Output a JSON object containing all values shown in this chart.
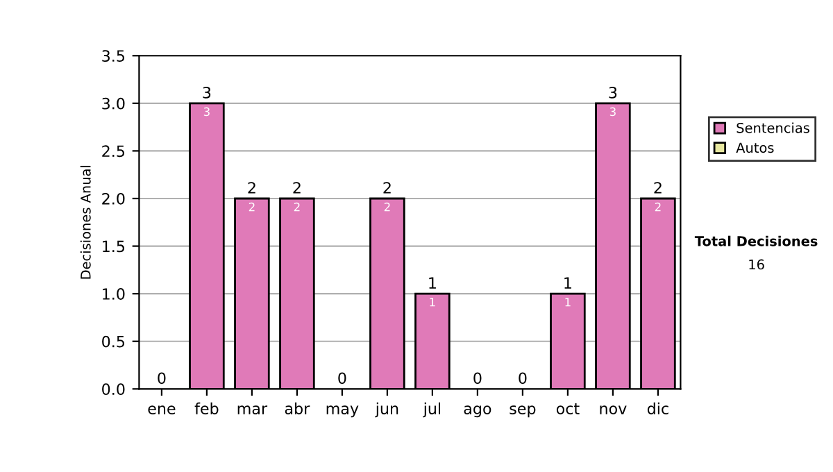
{
  "chart_data": {
    "type": "bar",
    "ylabel": "Decisiones Anual",
    "categories": [
      "ene",
      "feb",
      "mar",
      "abr",
      "may",
      "jun",
      "jul",
      "ago",
      "sep",
      "oct",
      "nov",
      "dic"
    ],
    "stacked": true,
    "series": [
      {
        "name": "Sentencias",
        "color": "#e07ab8",
        "values": [
          0,
          3,
          2,
          2,
          0,
          2,
          1,
          0,
          0,
          1,
          3,
          2
        ],
        "value_labels": [
          null,
          "3",
          "2",
          "2",
          null,
          "2",
          "1",
          null,
          null,
          "1",
          "3",
          "2"
        ]
      },
      {
        "name": "Autos",
        "color": "#e8e8a0",
        "values": [
          0,
          0,
          0,
          0,
          0,
          0,
          0,
          0,
          0,
          0,
          0,
          0
        ]
      }
    ],
    "totals": [
      "0",
      "3",
      "2",
      "2",
      "0",
      "2",
      "1",
      "0",
      "0",
      "1",
      "3",
      "2"
    ],
    "ylim": [
      0,
      3.5
    ],
    "yticks": [
      {
        "value": 0,
        "label": "0.0"
      },
      {
        "value": 0.5,
        "label": "0.5"
      },
      {
        "value": 1,
        "label": "1.0"
      },
      {
        "value": 1.5,
        "label": "1.5"
      },
      {
        "value": 2,
        "label": "2.0"
      },
      {
        "value": 2.5,
        "label": "2.5"
      },
      {
        "value": 3,
        "label": "3.0"
      },
      {
        "value": 3.5,
        "label": "3.5"
      }
    ],
    "grid": "y",
    "legend": "right",
    "annotations": [
      "Total Decisiones",
      "16"
    ]
  }
}
